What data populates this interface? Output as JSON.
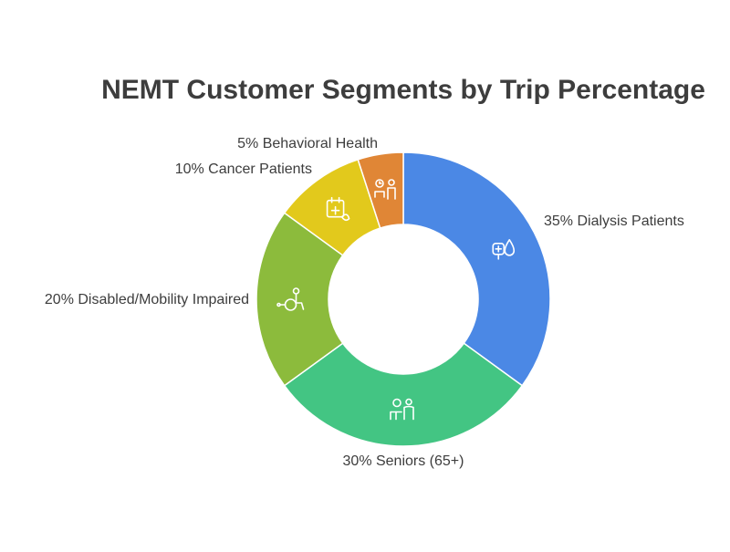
{
  "chart_data": {
    "type": "pie",
    "variant": "donut",
    "title": "NEMT Customer Segments by Trip Percentage",
    "slices": [
      {
        "label": "35% Dialysis Patients",
        "value": 35,
        "color": "#4b88e5",
        "icon": "dialysis-icon"
      },
      {
        "label": "30% Seniors (65+)",
        "value": 30,
        "color": "#43c583",
        "icon": "senior-care-icon"
      },
      {
        "label": "20% Disabled/Mobility Impaired",
        "value": 20,
        "color": "#8cbb3c",
        "icon": "wheelchair-icon"
      },
      {
        "label": "10% Cancer Patients",
        "value": 10,
        "color": "#e2c91c",
        "icon": "medical-calendar-icon"
      },
      {
        "label": "5% Behavioral Health",
        "value": 5,
        "color": "#e08636",
        "icon": "counseling-icon"
      }
    ]
  }
}
